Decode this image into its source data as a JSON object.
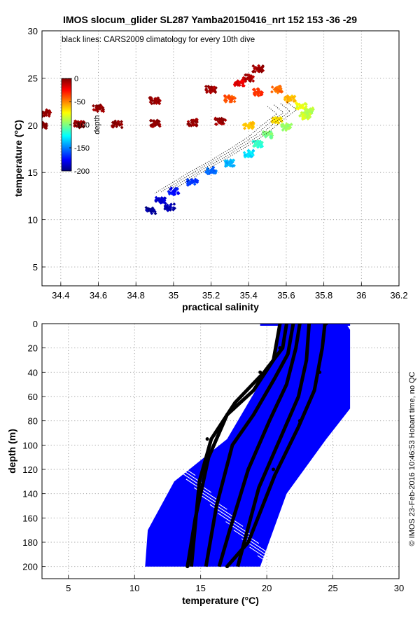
{
  "chart_data": [
    {
      "type": "scatter",
      "title": "IMOS slocum_glider SL287 Yamba20150416_nrt 152  153  -36  -29",
      "annotation": "black lines: CARS2009 climatology for every 10th dive",
      "xlabel": "practical salinity",
      "ylabel": "temperature (°C)",
      "xlim": [
        34.3,
        36.2
      ],
      "ylim": [
        3,
        30
      ],
      "xticks": [
        34.4,
        34.6,
        34.8,
        35,
        35.2,
        35.4,
        35.6,
        35.8,
        36,
        36.2
      ],
      "yticks": [
        5,
        10,
        15,
        20,
        25,
        30
      ],
      "grid": true,
      "colorbar": {
        "label": "depth",
        "min": -200,
        "max": 0,
        "ticks": [
          0,
          -50,
          -100,
          -150,
          -200
        ],
        "colormap": "jet",
        "placement": "inside upper-left"
      },
      "points": [
        {
          "x": 34.3,
          "y": 20.0,
          "depth": -2
        },
        {
          "x": 34.5,
          "y": 20.1,
          "depth": -3
        },
        {
          "x": 34.7,
          "y": 20.1,
          "depth": -3
        },
        {
          "x": 34.9,
          "y": 20.2,
          "depth": -4
        },
        {
          "x": 35.1,
          "y": 20.3,
          "depth": -4
        },
        {
          "x": 35.25,
          "y": 20.4,
          "depth": -5
        },
        {
          "x": 34.32,
          "y": 21.3,
          "depth": -3
        },
        {
          "x": 34.6,
          "y": 21.8,
          "depth": -4
        },
        {
          "x": 34.9,
          "y": 22.6,
          "depth": -5
        },
        {
          "x": 35.2,
          "y": 23.8,
          "depth": -6
        },
        {
          "x": 35.4,
          "y": 25.0,
          "depth": -8
        },
        {
          "x": 35.45,
          "y": 26.0,
          "depth": -5
        },
        {
          "x": 35.35,
          "y": 24.5,
          "depth": -20
        },
        {
          "x": 35.3,
          "y": 22.8,
          "depth": -40
        },
        {
          "x": 35.45,
          "y": 23.5,
          "depth": -35
        },
        {
          "x": 35.55,
          "y": 23.8,
          "depth": -45
        },
        {
          "x": 35.62,
          "y": 22.8,
          "depth": -60
        },
        {
          "x": 35.68,
          "y": 22.0,
          "depth": -80
        },
        {
          "x": 35.72,
          "y": 21.5,
          "depth": -90
        },
        {
          "x": 35.7,
          "y": 21.0,
          "depth": -85
        },
        {
          "x": 35.55,
          "y": 20.5,
          "depth": -70
        },
        {
          "x": 35.4,
          "y": 20.0,
          "depth": -65
        },
        {
          "x": 35.5,
          "y": 19.0,
          "depth": -100
        },
        {
          "x": 35.6,
          "y": 19.8,
          "depth": -95
        },
        {
          "x": 35.45,
          "y": 18.0,
          "depth": -115
        },
        {
          "x": 35.4,
          "y": 17.0,
          "depth": -130
        },
        {
          "x": 35.3,
          "y": 16.0,
          "depth": -140
        },
        {
          "x": 35.2,
          "y": 15.2,
          "depth": -155
        },
        {
          "x": 35.1,
          "y": 14.0,
          "depth": -165
        },
        {
          "x": 35.0,
          "y": 13.0,
          "depth": -175
        },
        {
          "x": 34.93,
          "y": 12.0,
          "depth": -185
        },
        {
          "x": 34.88,
          "y": 11.0,
          "depth": -195
        },
        {
          "x": 34.98,
          "y": 11.3,
          "depth": -190
        }
      ]
    },
    {
      "type": "scatter",
      "xlabel": "temperature (°C)",
      "ylabel": "depth (m)",
      "xlim": [
        3,
        30
      ],
      "ylim": [
        210,
        0
      ],
      "xticks": [
        5,
        10,
        15,
        20,
        25,
        30
      ],
      "yticks": [
        0,
        20,
        40,
        60,
        80,
        100,
        120,
        140,
        160,
        180,
        200
      ],
      "grid": true,
      "series": [
        {
          "color": "#0000ff",
          "points": [
            {
              "x": 21.0,
              "y": 0
            },
            {
              "x": 26.0,
              "y": 0
            },
            {
              "x": 26.3,
              "y": 5
            },
            {
              "x": 26.3,
              "y": 70
            },
            {
              "x": 24.5,
              "y": 95
            },
            {
              "x": 21.5,
              "y": 140
            },
            {
              "x": 19.5,
              "y": 200
            },
            {
              "x": 10.8,
              "y": 200
            },
            {
              "x": 11.0,
              "y": 170
            },
            {
              "x": 13.0,
              "y": 130
            },
            {
              "x": 17.0,
              "y": 95
            },
            {
              "x": 20.5,
              "y": 30
            },
            {
              "x": 21.0,
              "y": 5
            }
          ]
        },
        {
          "color": "#000000",
          "points": [
            {
              "x": 21.5,
              "y": 0
            },
            {
              "x": 21.0,
              "y": 20
            },
            {
              "x": 19.5,
              "y": 40
            },
            {
              "x": 17.5,
              "y": 70
            },
            {
              "x": 15.5,
              "y": 95
            },
            {
              "x": 14.0,
              "y": 200
            },
            {
              "x": 24.5,
              "y": 0
            },
            {
              "x": 24.0,
              "y": 40
            },
            {
              "x": 22.5,
              "y": 80
            },
            {
              "x": 20.5,
              "y": 120
            },
            {
              "x": 17.0,
              "y": 200
            }
          ]
        }
      ]
    }
  ],
  "side_text": "© IMOS 23-Feb-2016 10:46:53 Hobart time, no QC"
}
